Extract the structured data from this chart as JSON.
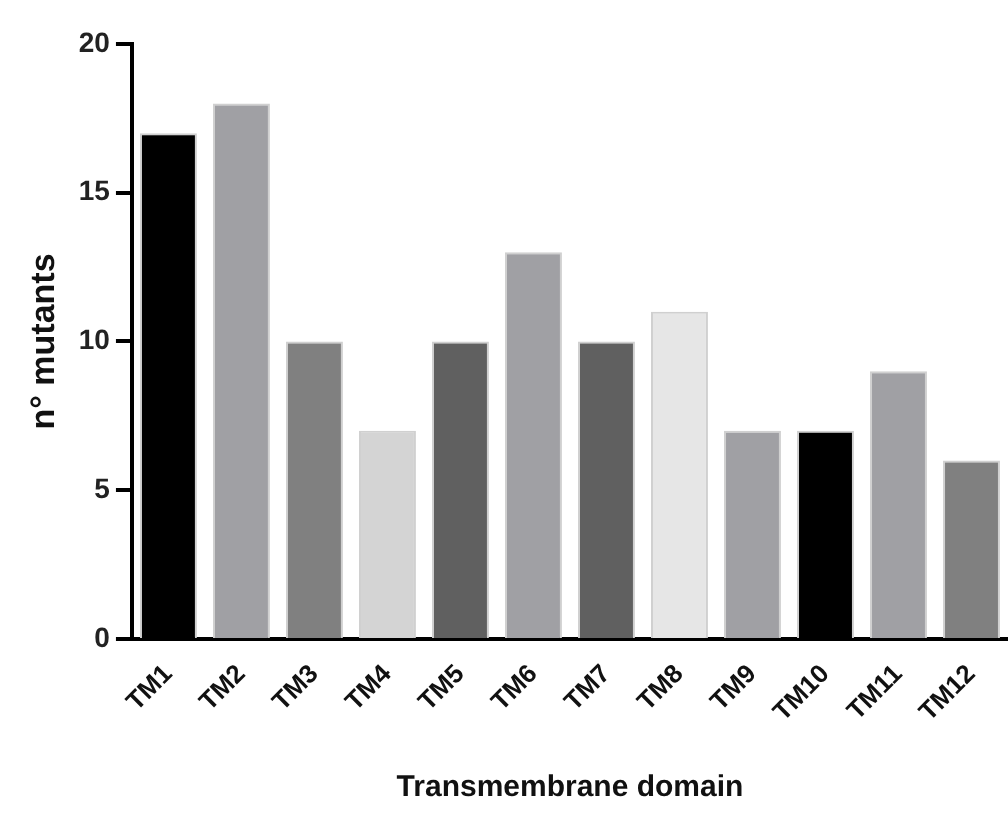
{
  "chart_data": {
    "type": "bar",
    "xlabel": "Transmembrane domain",
    "ylabel": "n° mutants",
    "categories": [
      "TM1",
      "TM2",
      "TM3",
      "TM4",
      "TM5",
      "TM6",
      "TM7",
      "TM8",
      "TM9",
      "TM10",
      "TM11",
      "TM12"
    ],
    "values": [
      17,
      18,
      10,
      7,
      10,
      13,
      10,
      11,
      7,
      7,
      9,
      6
    ],
    "colors": [
      "#000000",
      "#a0a0a4",
      "#808080",
      "#d4d4d4",
      "#606060",
      "#a0a0a4",
      "#606060",
      "#e6e6e6",
      "#a0a0a4",
      "#000000",
      "#a0a0a4",
      "#808080"
    ],
    "ylim": [
      0,
      20
    ],
    "yticks": [
      0,
      5,
      10,
      15,
      20
    ],
    "grid": false,
    "legend": false
  }
}
